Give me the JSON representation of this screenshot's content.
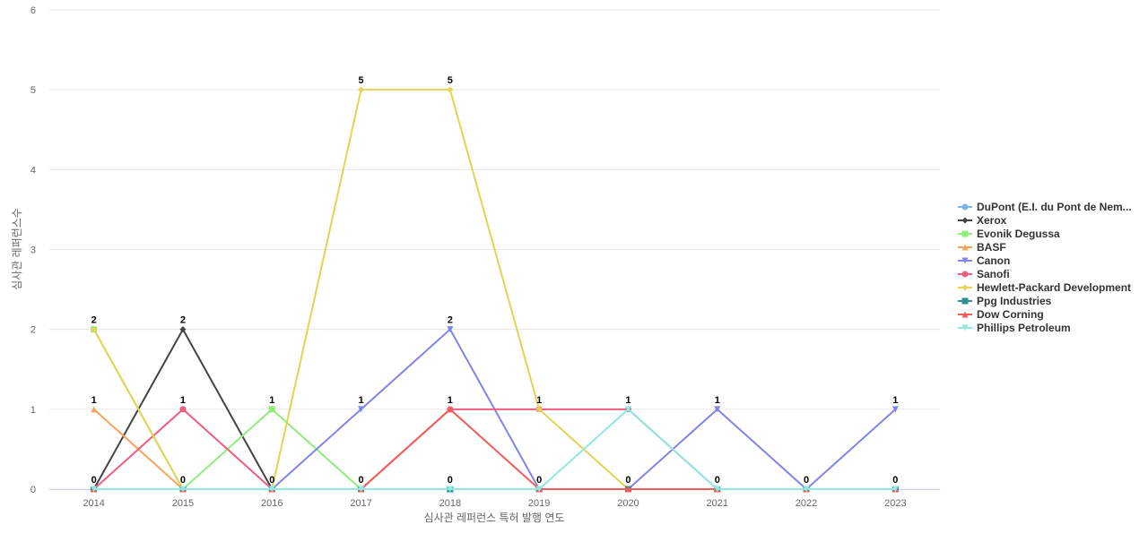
{
  "chart_data": {
    "type": "line",
    "x_label": "심사관 레퍼런스 특허 발행 연도",
    "y_label": "심사관 레퍼런스수",
    "categories": [
      "2014",
      "2015",
      "2016",
      "2017",
      "2018",
      "2019",
      "2020",
      "2021",
      "2022",
      "2023"
    ],
    "ylim": [
      0,
      6
    ],
    "yticks": [
      0,
      1,
      2,
      3,
      4,
      5,
      6
    ],
    "grid": true,
    "legend": "right",
    "series": [
      {
        "name": "DuPont (E.I. du Pont de Nem...",
        "color": "#7cb5ec",
        "marker": "circle",
        "values": [
          0,
          0,
          0,
          0,
          0,
          0,
          0,
          0,
          0,
          0
        ]
      },
      {
        "name": "Xerox",
        "color": "#434348",
        "marker": "diamond",
        "values": [
          0,
          2,
          0,
          0,
          0,
          0,
          0,
          0,
          0,
          0
        ]
      },
      {
        "name": "Evonik Degussa",
        "color": "#90ed7d",
        "marker": "square",
        "values": [
          2,
          0,
          1,
          0,
          0,
          0,
          0,
          0,
          0,
          0
        ]
      },
      {
        "name": "BASF",
        "color": "#f7a35c",
        "marker": "triangle",
        "values": [
          1,
          0,
          0,
          0,
          0,
          0,
          0,
          0,
          0,
          0
        ]
      },
      {
        "name": "Canon",
        "color": "#8085e9",
        "marker": "triangle-down",
        "values": [
          0,
          0,
          0,
          1,
          2,
          0,
          0,
          1,
          0,
          1
        ]
      },
      {
        "name": "Sanofi",
        "color": "#f15c80",
        "marker": "circle",
        "values": [
          0,
          1,
          0,
          0,
          1,
          1,
          1,
          0,
          0,
          0
        ]
      },
      {
        "name": "Hewlett-Packard Development",
        "color": "#e4d354",
        "marker": "diamond",
        "values": [
          2,
          0,
          0,
          5,
          5,
          1,
          0,
          0,
          0,
          0
        ]
      },
      {
        "name": "Ppg Industries",
        "color": "#2b908f",
        "marker": "square",
        "values": [
          0,
          0,
          0,
          0,
          0,
          0,
          0,
          0,
          0,
          0
        ]
      },
      {
        "name": "Dow Corning",
        "color": "#f45b5b",
        "marker": "triangle",
        "values": [
          0,
          0,
          0,
          0,
          1,
          0,
          0,
          0,
          0,
          0
        ]
      },
      {
        "name": "Phillips Petroleum",
        "color": "#91e8e1",
        "marker": "triangle-down",
        "values": [
          0,
          0,
          0,
          0,
          0,
          0,
          1,
          0,
          0,
          0
        ]
      }
    ]
  }
}
